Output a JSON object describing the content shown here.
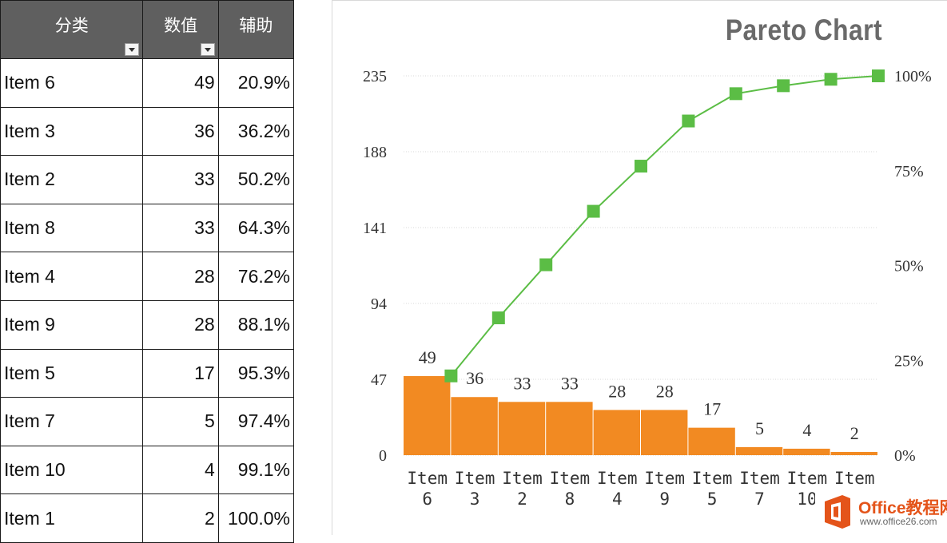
{
  "table": {
    "headers": [
      "分类",
      "数值",
      "辅助"
    ],
    "rows": [
      {
        "name": "Item 6",
        "value": "49",
        "aux": "20.9%"
      },
      {
        "name": "Item 3",
        "value": "36",
        "aux": "36.2%"
      },
      {
        "name": "Item 2",
        "value": "33",
        "aux": "50.2%"
      },
      {
        "name": "Item 8",
        "value": "33",
        "aux": "64.3%"
      },
      {
        "name": "Item 4",
        "value": "28",
        "aux": "76.2%"
      },
      {
        "name": "Item 9",
        "value": "28",
        "aux": "88.1%"
      },
      {
        "name": "Item 5",
        "value": "17",
        "aux": "95.3%"
      },
      {
        "name": "Item 7",
        "value": "5",
        "aux": "97.4%"
      },
      {
        "name": "Item 10",
        "value": "4",
        "aux": "99.1%"
      },
      {
        "name": "Item 1",
        "value": "2",
        "aux": "100.0%"
      }
    ]
  },
  "chart_data": {
    "type": "bar",
    "title": "Pareto Chart",
    "categories": [
      [
        "Item",
        "6"
      ],
      [
        "Item",
        "3"
      ],
      [
        "Item",
        "2"
      ],
      [
        "Item",
        "8"
      ],
      [
        "Item",
        "4"
      ],
      [
        "Item",
        "9"
      ],
      [
        "Item",
        "5"
      ],
      [
        "Item",
        "7"
      ],
      [
        "Item",
        "10"
      ],
      [
        "Item",
        "1"
      ]
    ],
    "series": [
      {
        "type": "bar",
        "axis": "left",
        "values": [
          49,
          36,
          33,
          33,
          28,
          28,
          17,
          5,
          4,
          2
        ],
        "data_labels": true,
        "color": "#f28a22"
      },
      {
        "type": "line",
        "axis": "right",
        "values": [
          0.209,
          0.362,
          0.502,
          0.643,
          0.762,
          0.881,
          0.953,
          0.974,
          0.991,
          1.0
        ],
        "marker": "square",
        "color": "#5bbd45"
      }
    ],
    "y_left": {
      "ticks": [
        "0",
        "47",
        "94",
        "141",
        "188",
        "235"
      ],
      "ylim": [
        0,
        235
      ]
    },
    "y_right": {
      "ticks": [
        "0%",
        "25%",
        "50%",
        "75%",
        "100%"
      ],
      "ylim": [
        0,
        1
      ]
    },
    "grid": "horizontal"
  },
  "watermark": {
    "name": "Office教程网",
    "url": "www.office26.com"
  },
  "colors": {
    "bar": "#f28a22",
    "line": "#5bbd45",
    "header_bg": "#5f5f5f",
    "title": "#6a6a6a",
    "watermark": "#e4541a"
  }
}
